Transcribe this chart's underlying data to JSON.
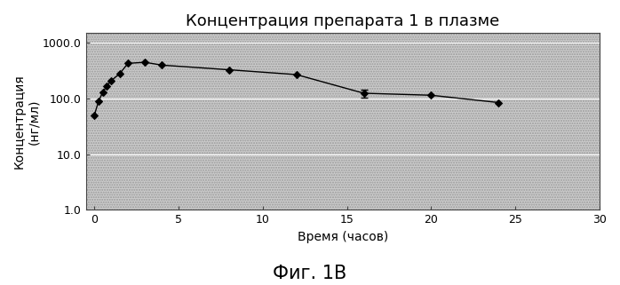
{
  "title": "Концентрация препарата 1 в плазме",
  "xlabel": "Время (часов)",
  "ylabel": "Концентрация\n(нг/мл)",
  "caption": "Фиг. 1B",
  "x": [
    0,
    0.25,
    0.5,
    0.75,
    1.0,
    1.5,
    2.0,
    3.0,
    4.0,
    8.0,
    12.0,
    16.0,
    20.0,
    24.0
  ],
  "y": [
    50,
    90,
    130,
    170,
    210,
    280,
    430,
    450,
    400,
    330,
    270,
    125,
    115,
    85
  ],
  "yerr": [
    0,
    0,
    0,
    0,
    0,
    0,
    0,
    0,
    0,
    0,
    0,
    20,
    0,
    0
  ],
  "xlim": [
    -0.5,
    30
  ],
  "ylim": [
    1.0,
    1500.0
  ],
  "xticks": [
    0,
    5,
    10,
    15,
    20,
    25,
    30
  ],
  "yticks": [
    1.0,
    10.0,
    100.0,
    1000.0
  ],
  "ytick_labels": [
    "1.0",
    "10.0",
    "100.0",
    "1000.0"
  ],
  "background_color": "#c8c8c8",
  "line_color": "#000000",
  "marker": "D",
  "marker_size": 4,
  "marker_color": "#000000",
  "grid_color": "#ffffff",
  "title_fontsize": 13,
  "label_fontsize": 10,
  "tick_fontsize": 9,
  "caption_fontsize": 15
}
